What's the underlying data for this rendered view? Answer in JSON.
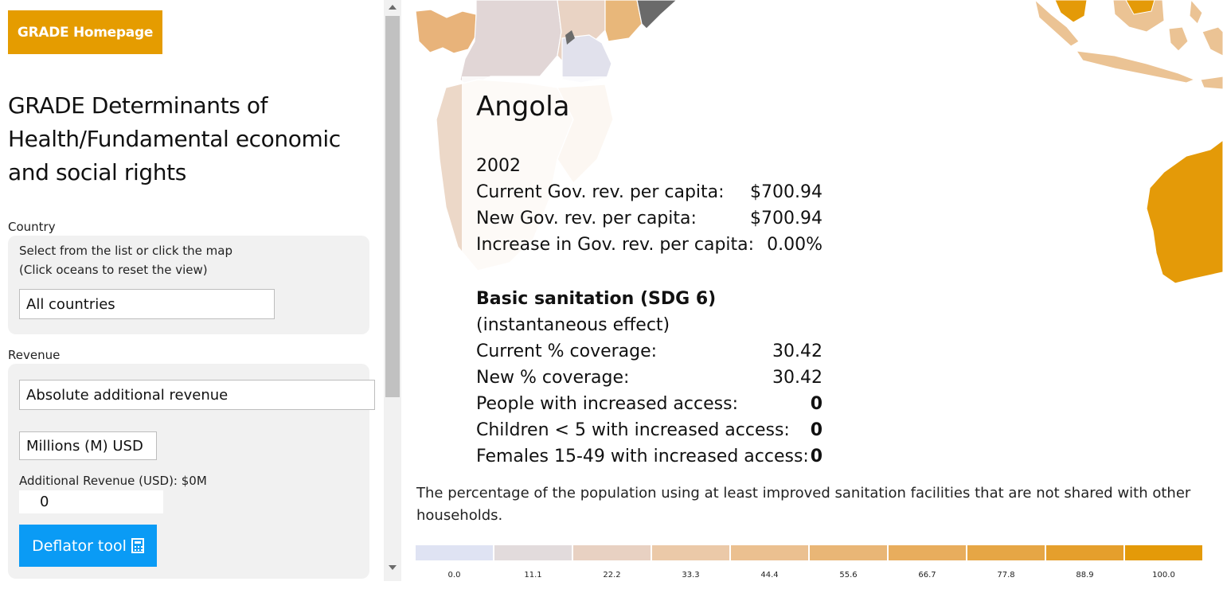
{
  "sidebar": {
    "home_button": "GRADE Homepage",
    "title": "GRADE Determinants of Health/Fundamental economic and social rights",
    "country": {
      "label": "Country",
      "hint_line1": "Select from the list or click the map",
      "hint_line2": "(Click oceans to reset the view)",
      "selected": "All countries"
    },
    "revenue": {
      "label": "Revenue",
      "type_selected": "Absolute additional revenue",
      "unit_selected": "Millions (M) USD",
      "amount_label": "Additional Revenue (USD): $0M",
      "amount_value": "0",
      "deflator_button": "Deflator tool"
    }
  },
  "tooltip": {
    "country": "Angola",
    "year": "2002",
    "gov_rows": [
      {
        "label": "Current Gov. rev. per capita:",
        "value": "$700.94"
      },
      {
        "label": "New Gov. rev. per capita:",
        "value": "$700.94"
      },
      {
        "label": "Increase in Gov. rev. per capita:",
        "value": "0.00%"
      }
    ],
    "indicator_title": "Basic sanitation (SDG 6)",
    "indicator_subtitle": "(instantaneous effect)",
    "indicator_rows": [
      {
        "label": "Current % coverage:",
        "value": "30.42",
        "bold": false
      },
      {
        "label": "New % coverage:",
        "value": "30.42",
        "bold": false
      },
      {
        "label": "People with increased access:",
        "value": "0",
        "bold": true
      },
      {
        "label": "Children < 5 with increased access:",
        "value": "0",
        "bold": true
      },
      {
        "label": "Females 15-49 with increased access:",
        "value": "0",
        "bold": true
      }
    ]
  },
  "description": "The percentage of the population using at least improved sanitation facilities that are not shared with other households.",
  "legend": {
    "labels": [
      "0.0",
      "11.1",
      "22.2",
      "33.3",
      "44.4",
      "55.6",
      "66.7",
      "77.8",
      "88.9",
      "100.0"
    ],
    "colors": [
      "#dfe3f3",
      "#e2dbdc",
      "#e8d1c2",
      "#ebc9a8",
      "#ebc090",
      "#e9b676",
      "#e8ad5d",
      "#e6a645",
      "#e59f2c",
      "#e49a08"
    ]
  },
  "icons": {
    "deflator": "calculator-icon",
    "scroll_up": "arrow-up-icon",
    "scroll_down": "arrow-down-icon"
  }
}
